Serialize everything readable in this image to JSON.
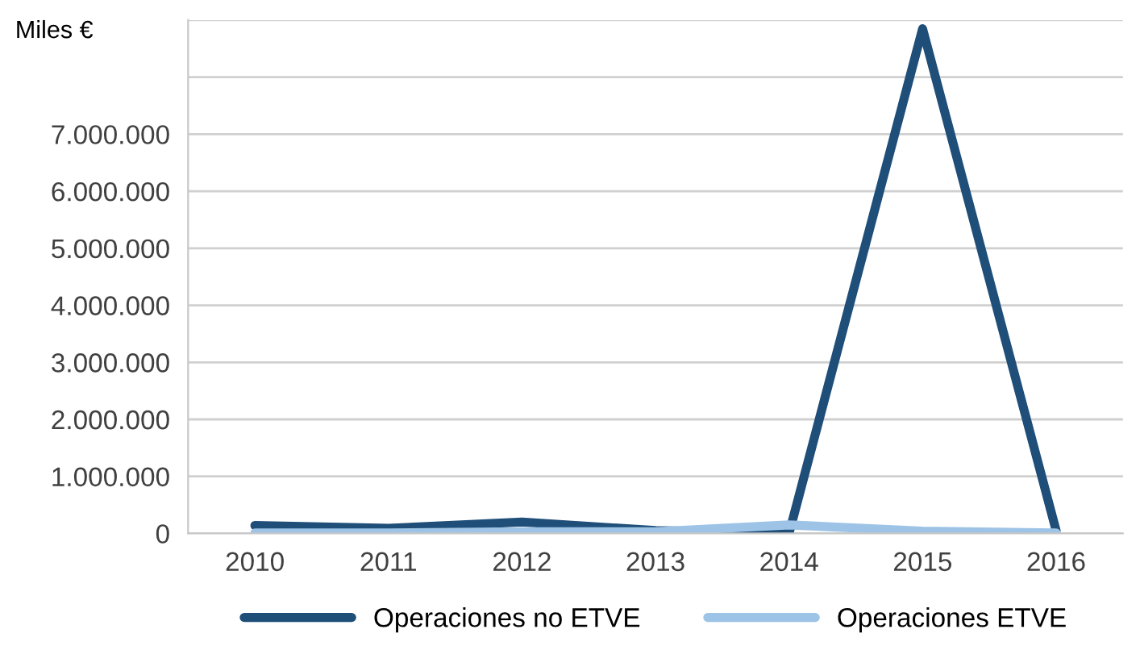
{
  "chart_data": {
    "type": "line",
    "ylabel": "Miles €",
    "categories": [
      "2010",
      "2011",
      "2012",
      "2013",
      "2014",
      "2015",
      "2016"
    ],
    "series": [
      {
        "name": "Operaciones no ETVE",
        "color": "#1f4e79",
        "values": [
          140000,
          90000,
          200000,
          50000,
          0,
          8850000,
          50000
        ]
      },
      {
        "name": "Operaciones ETVE",
        "color": "#9dc3e6",
        "values": [
          10000,
          10000,
          30000,
          30000,
          150000,
          40000,
          10000
        ]
      }
    ],
    "ylim": [
      0,
      9000000
    ],
    "yticks": [
      {
        "value": 0,
        "label": "0"
      },
      {
        "value": 1000000,
        "label": "1.000.000"
      },
      {
        "value": 2000000,
        "label": "2.000.000"
      },
      {
        "value": 3000000,
        "label": "3.000.000"
      },
      {
        "value": 4000000,
        "label": "4.000.000"
      },
      {
        "value": 5000000,
        "label": "5.000.000"
      },
      {
        "value": 6000000,
        "label": "6.000.000"
      },
      {
        "value": 7000000,
        "label": "7.000.000"
      },
      {
        "value": 8000000,
        "label": null
      },
      {
        "value": 9000000,
        "label": null
      }
    ],
    "grid": "y",
    "legend": "bottom",
    "marker": "none",
    "line_style": "solid"
  }
}
